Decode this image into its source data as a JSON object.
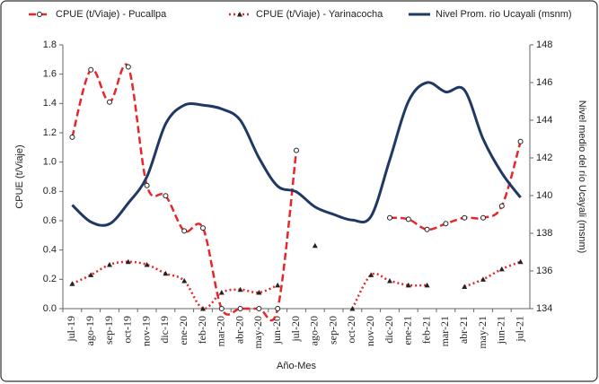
{
  "chart_data": {
    "type": "line",
    "x_label": "Año-Mes",
    "y_label": "CPUE (t/Viaje)",
    "y2_label": "Nivel medio del río Ucayali (msnm)",
    "categories": [
      "jul-19",
      "ago-19",
      "sep-19",
      "oct-19",
      "nov-19",
      "dic-19",
      "ene-20",
      "feb-20",
      "mar-20",
      "abr-20",
      "may-20",
      "jun-20",
      "jul-20",
      "ago-20",
      "sep-20",
      "oct-20",
      "nov-20",
      "dic-20",
      "ene-21",
      "feb-21",
      "mar-21",
      "abr-21",
      "may-21",
      "jun-21",
      "jul-21"
    ],
    "series": [
      {
        "name": "CPUE  (t/Viaje) - Pucallpa",
        "color": "#e8262a",
        "dash": "dashed",
        "marker": "circle",
        "values": [
          1.17,
          1.63,
          1.41,
          1.65,
          0.84,
          0.77,
          0.53,
          0.55,
          0.0,
          0.0,
          0.0,
          0.0,
          1.08,
          null,
          null,
          null,
          null,
          0.62,
          0.61,
          0.54,
          0.58,
          0.62,
          0.62,
          0.7,
          1.14
        ]
      },
      {
        "name": "CPUE (t/Viaje) - Yarinacocha",
        "color": "#e8262a",
        "dash": "dotted",
        "marker": "triangle",
        "values": [
          0.17,
          0.23,
          0.3,
          0.32,
          0.3,
          0.24,
          0.19,
          0.0,
          0.11,
          0.13,
          0.11,
          0.16,
          null,
          0.43,
          null,
          0.0,
          0.23,
          0.19,
          0.16,
          0.16,
          null,
          0.15,
          0.2,
          0.27,
          0.32
        ]
      },
      {
        "name": "Nivel Prom. rio Ucayali  (msnm)",
        "color": "#1f3864",
        "dash": "solid",
        "marker": "none",
        "axis": "y2",
        "values": [
          139.5,
          138.6,
          138.5,
          139.6,
          141.0,
          143.8,
          144.8,
          144.8,
          144.6,
          144.0,
          142.0,
          140.5,
          140.2,
          139.4,
          139.0,
          138.7,
          138.9,
          141.9,
          145.0,
          146.0,
          145.5,
          145.6,
          143.0,
          141.2,
          139.9
        ]
      }
    ],
    "ylim": [
      0,
      1.8
    ],
    "yticks": [
      {
        "value": 0,
        "label": "0.0"
      },
      0.2,
      0.4,
      0.6,
      0.8,
      {
        "value": 1,
        "label": "1.0"
      },
      1.2,
      1.4,
      1.6,
      1.8
    ],
    "y2lim": [
      134,
      148
    ],
    "y2ticks": [
      134,
      136,
      138,
      140,
      142,
      144,
      146,
      148
    ],
    "legend": "top"
  }
}
